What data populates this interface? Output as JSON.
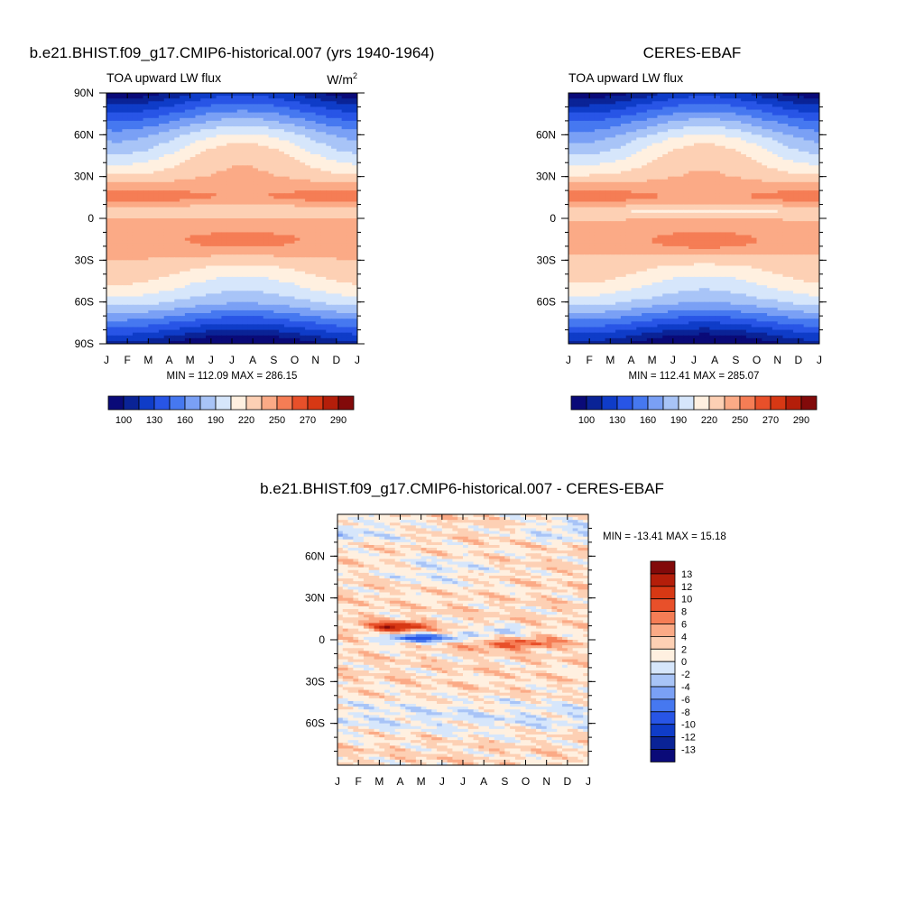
{
  "chart_data": [
    {
      "type": "heatmap",
      "title": "b.e21.BHIST.f09_g17.CMIP6-historical.007 (yrs 1940-1964)",
      "subtitle": "TOA upward LW flux",
      "units": "W/m",
      "units_exp": "2",
      "x_ticks": [
        "J",
        "F",
        "M",
        "A",
        "M",
        "J",
        "J",
        "A",
        "S",
        "O",
        "N",
        "D",
        "J"
      ],
      "y_ticks": [
        "90N",
        "60N",
        "30N",
        "0",
        "30S",
        "60S",
        "90S"
      ],
      "ylim": [
        -90,
        90
      ],
      "stats": "MIN = 112.09 MAX = 286.15",
      "colorbar_labels": [
        "100",
        "130",
        "160",
        "190",
        "220",
        "250",
        "270",
        "290"
      ],
      "levels": [
        100,
        115,
        130,
        145,
        160,
        175,
        190,
        205,
        220,
        235,
        250,
        260,
        270,
        280,
        290
      ],
      "min": 112.09,
      "max": 286.15
    },
    {
      "type": "heatmap",
      "title": "CERES-EBAF",
      "subtitle": "TOA upward LW flux",
      "x_ticks": [
        "J",
        "F",
        "M",
        "A",
        "M",
        "J",
        "J",
        "A",
        "S",
        "O",
        "N",
        "D",
        "J"
      ],
      "y_ticks": [
        "60N",
        "30N",
        "0",
        "30S",
        "60S"
      ],
      "ylim": [
        -90,
        90
      ],
      "stats": "MIN = 112.41 MAX = 285.07",
      "colorbar_labels": [
        "100",
        "130",
        "160",
        "190",
        "220",
        "250",
        "270",
        "290"
      ],
      "levels": [
        100,
        115,
        130,
        145,
        160,
        175,
        190,
        205,
        220,
        235,
        250,
        260,
        270,
        280,
        290
      ],
      "min": 112.41,
      "max": 285.07
    },
    {
      "type": "heatmap",
      "title": "b.e21.BHIST.f09_g17.CMIP6-historical.007 - CERES-EBAF",
      "x_ticks": [
        "J",
        "F",
        "M",
        "A",
        "M",
        "J",
        "J",
        "A",
        "S",
        "O",
        "N",
        "D",
        "J"
      ],
      "y_ticks": [
        "60N",
        "30N",
        "0",
        "30S",
        "60S"
      ],
      "ylim": [
        -90,
        90
      ],
      "stats": "MIN = -13.41 MAX =  15.18",
      "colorbar_labels": [
        "13",
        "12",
        "10",
        "8",
        "6",
        "4",
        "2",
        "0",
        "-2",
        "-4",
        "-6",
        "-8",
        "-10",
        "-12",
        "-13"
      ],
      "levels": [
        -13,
        -12,
        -10,
        -8,
        -6,
        -4,
        -2,
        0,
        2,
        4,
        6,
        8,
        10,
        12,
        13
      ],
      "min": -13.41,
      "max": 15.18
    }
  ],
  "palettes": {
    "abs": [
      "#0a0a78",
      "#0a2396",
      "#0f3cc8",
      "#2855e6",
      "#4678f0",
      "#7aa0f5",
      "#a8c4f7",
      "#d6e6fb",
      "#fff0e0",
      "#fdd0b4",
      "#fbaa86",
      "#f57d55",
      "#e8502a",
      "#d73814",
      "#b41e0a",
      "#820a0a"
    ],
    "diff": [
      "#0a0a78",
      "#0a2396",
      "#0f3cc8",
      "#2855e6",
      "#4678f0",
      "#7aa0f5",
      "#a8c4f7",
      "#d6e6fb",
      "#fff0e0",
      "#fdd0b4",
      "#fbaa86",
      "#f57d55",
      "#e8502a",
      "#d73814",
      "#b41e0a",
      "#820a0a"
    ]
  }
}
